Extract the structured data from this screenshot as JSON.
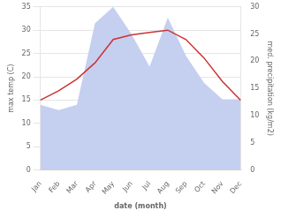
{
  "chart_data": {
    "type": "line",
    "categories": [
      "Jan",
      "Feb",
      "Mar",
      "Apr",
      "May",
      "Jun",
      "Jul",
      "Aug",
      "Sep",
      "Oct",
      "Nov",
      "Dec"
    ],
    "series": [
      {
        "name": "med. precipitation (kg/m2)",
        "type": "area",
        "color": "#c5cff0",
        "axis": "y2",
        "values": [
          12,
          11,
          12,
          27,
          30,
          25,
          19,
          28,
          21,
          16,
          13,
          13
        ]
      },
      {
        "name": "max temp (C)",
        "type": "line",
        "color": "#cc3333",
        "axis": "y",
        "values": [
          15,
          17,
          19.5,
          23,
          28,
          29,
          29.5,
          30,
          28,
          24,
          19,
          15
        ]
      }
    ],
    "xlabel": "date (month)",
    "ylabel": "max temp (C)",
    "y2label": "med. precipitation (kg/m2)",
    "ylim": [
      0,
      35
    ],
    "yticks": [
      0,
      5,
      10,
      15,
      20,
      25,
      30,
      35
    ],
    "y2lim": [
      0,
      30
    ],
    "y2ticks": [
      0,
      5,
      10,
      15,
      20,
      25,
      30
    ],
    "grid": true
  }
}
